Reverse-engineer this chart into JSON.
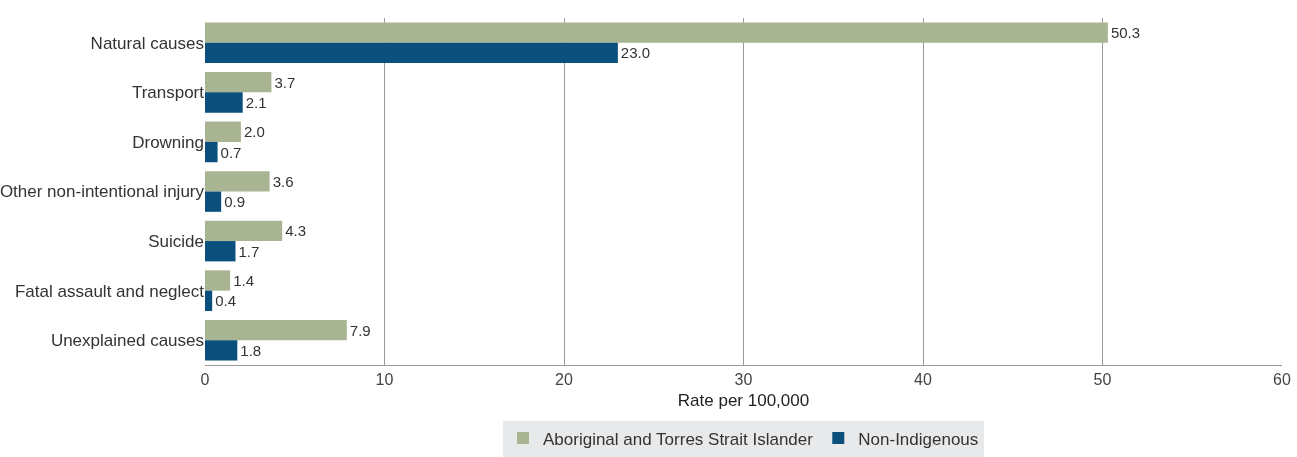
{
  "chart_data": {
    "type": "bar",
    "orientation": "horizontal",
    "xlabel": "Rate per 100,000",
    "categories": [
      "Natural causes",
      "Transport",
      "Drowning",
      "Other non-intentional injury",
      "Suicide",
      "Fatal assault and neglect",
      "Unexplained causes"
    ],
    "series": [
      {
        "name": "Aboriginal and Torres Strait Islander",
        "color": "#a9b492",
        "values": [
          50.3,
          3.7,
          2.0,
          3.6,
          4.3,
          1.4,
          7.9
        ],
        "value_labels": [
          "50.3",
          "3.7",
          "2.0",
          "3.6",
          "4.3",
          "1.4",
          "7.9"
        ]
      },
      {
        "name": "Non-Indigenous",
        "color": "#0b4f7c",
        "values": [
          23.0,
          2.1,
          0.7,
          0.9,
          1.7,
          0.4,
          1.8
        ],
        "value_labels": [
          "23.0",
          "2.1",
          "0.7",
          "0.9",
          "1.7",
          "0.4",
          "1.8"
        ]
      }
    ],
    "xlim": [
      0,
      60
    ],
    "xticks": [
      0,
      10,
      20,
      30,
      40,
      50,
      60
    ],
    "grid": "x",
    "legend": "bottom"
  }
}
